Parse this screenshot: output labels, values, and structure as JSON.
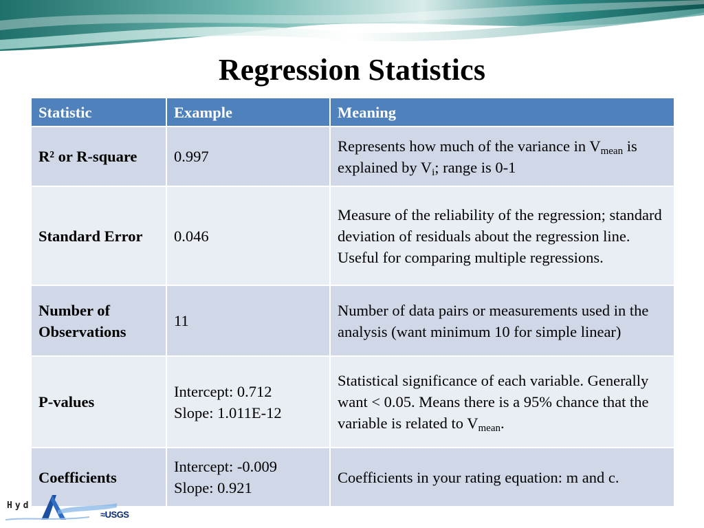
{
  "title": "Regression Statistics",
  "colors": {
    "header_bg": "#4f81bd",
    "row_odd": "#d0d8e8",
    "row_even": "#e9edf4",
    "banner": "#2f8a86"
  },
  "table": {
    "headers": [
      "Statistic",
      "Example",
      "Meaning"
    ],
    "rows": [
      {
        "statistic": "R² or R-square",
        "example": "0.997",
        "meaning": {
          "p1": "Represents how much of the variance in V",
          "s1": "mean",
          "p2": " is explained by V",
          "s2": "i",
          "p3": "; range is 0-1"
        }
      },
      {
        "statistic": "Standard Error",
        "example": "0.046",
        "meaning": {
          "text": "Measure of the reliability of the regression; standard deviation of residuals about the regression line. Useful for comparing multiple regressions."
        }
      },
      {
        "statistic": "Number of Observations",
        "example": "11",
        "meaning": {
          "text": "Number of data pairs or measurements used in the analysis (want minimum 10 for simple linear)"
        }
      },
      {
        "statistic": "P-values",
        "example_line1": "Intercept: 0.712",
        "example_line2": "Slope: 1.011E-12",
        "meaning": {
          "p1": "Statistical significance of each variable. Generally want < 0.05. Means there is a 95% chance that the variable is related to V",
          "s1": "mean",
          "p2": "."
        }
      },
      {
        "statistic": "Coefficients",
        "example_line1": "Intercept: -0.009",
        "example_line2": "Slope: 0.921",
        "meaning": {
          "text": "Coefficients in your rating equation: m and c."
        }
      }
    ]
  },
  "footer_logo": {
    "text": "Hyd",
    "agency": "≈USGS"
  }
}
